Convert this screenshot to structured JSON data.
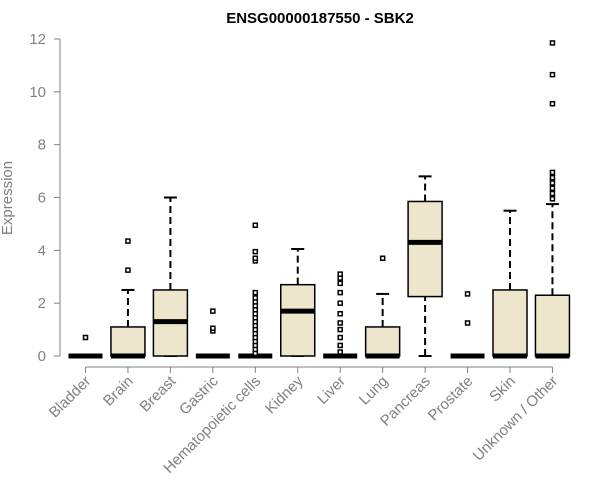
{
  "chart_data": {
    "type": "boxplot",
    "title": "ENSG00000187550 - SBK2",
    "xlabel": "",
    "ylabel": "Expression",
    "ylim": [
      0,
      12
    ],
    "yticks": [
      0,
      2,
      4,
      6,
      8,
      10,
      12
    ],
    "grid": false,
    "legend": "none",
    "colors": {
      "box_fill": "#ede6cc",
      "box_stroke": "#000000",
      "axis": "#808080",
      "text": "#808080"
    },
    "categories": [
      "Bladder",
      "Brain",
      "Breast",
      "Gastric",
      "Hematopoietic cells",
      "Kidney",
      "Liver",
      "Lung",
      "Pancreas",
      "Prostate",
      "Skin",
      "Unknown / Other"
    ],
    "boxes": [
      {
        "category": "Bladder",
        "q1": 0,
        "median": 0,
        "q3": 0,
        "whisker_low": 0,
        "whisker_high": 0,
        "outliers": [
          0.7
        ]
      },
      {
        "category": "Brain",
        "q1": 0,
        "median": 0,
        "q3": 1.1,
        "whisker_low": 0,
        "whisker_high": 2.5,
        "outliers": [
          3.25,
          4.35
        ]
      },
      {
        "category": "Breast",
        "q1": 0,
        "median": 1.3,
        "q3": 2.5,
        "whisker_low": 0,
        "whisker_high": 6.0,
        "outliers": []
      },
      {
        "category": "Gastric",
        "q1": 0,
        "median": 0,
        "q3": 0,
        "whisker_low": 0,
        "whisker_high": 0,
        "outliers": [
          0.95,
          1.05,
          1.7
        ]
      },
      {
        "category": "Hematopoietic cells",
        "q1": 0,
        "median": 0,
        "q3": 0,
        "whisker_low": 0,
        "whisker_high": 0,
        "outliers": [
          0.1,
          0.25,
          0.4,
          0.55,
          0.7,
          0.85,
          1.0,
          1.15,
          1.3,
          1.45,
          1.6,
          1.75,
          1.9,
          2.05,
          2.2,
          2.4,
          3.6,
          3.7,
          3.95,
          4.95
        ]
      },
      {
        "category": "Kidney",
        "q1": 0,
        "median": 1.7,
        "q3": 2.7,
        "whisker_low": 0,
        "whisker_high": 4.05,
        "outliers": []
      },
      {
        "category": "Liver",
        "q1": 0,
        "median": 0,
        "q3": 0,
        "whisker_low": 0,
        "whisker_high": 0,
        "outliers": [
          0.15,
          0.4,
          0.7,
          1.0,
          1.25,
          1.6,
          2.0,
          2.4,
          2.75,
          2.95,
          3.1
        ]
      },
      {
        "category": "Lung",
        "q1": 0,
        "median": 0,
        "q3": 1.1,
        "whisker_low": 0,
        "whisker_high": 2.35,
        "outliers": [
          3.7
        ]
      },
      {
        "category": "Pancreas",
        "q1": 2.25,
        "median": 4.3,
        "q3": 5.85,
        "whisker_low": 0,
        "whisker_high": 6.8,
        "outliers": []
      },
      {
        "category": "Prostate",
        "q1": 0,
        "median": 0,
        "q3": 0,
        "whisker_low": 0,
        "whisker_high": 0,
        "outliers": [
          1.25,
          2.35
        ]
      },
      {
        "category": "Skin",
        "q1": 0,
        "median": 0,
        "q3": 2.5,
        "whisker_low": 0,
        "whisker_high": 5.5,
        "outliers": []
      },
      {
        "category": "Unknown / Other",
        "q1": 0,
        "median": 0,
        "q3": 2.3,
        "whisker_low": 0,
        "whisker_high": 5.75,
        "outliers": [
          5.95,
          6.15,
          6.35,
          6.55,
          6.75,
          6.95,
          9.55,
          10.65,
          11.85
        ]
      }
    ]
  }
}
